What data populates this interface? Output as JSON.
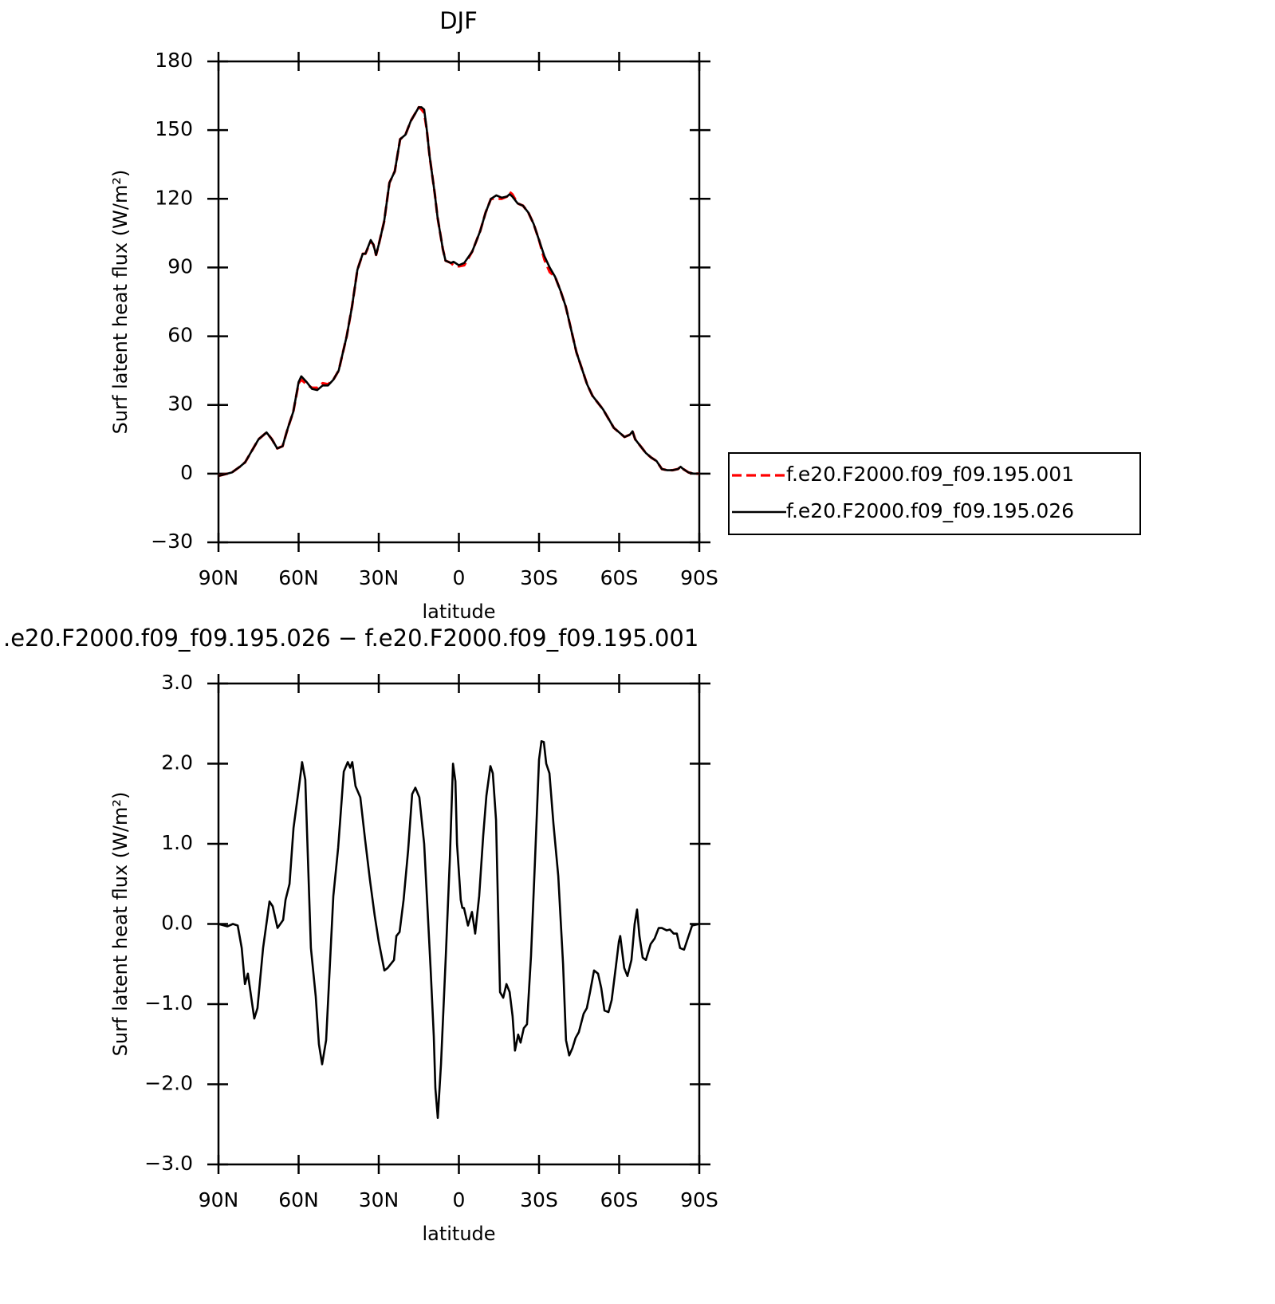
{
  "chart_data": [
    {
      "type": "line",
      "title": "DJF",
      "xlabel": "latitude",
      "ylabel": "Surf latent heat flux (W/m²)",
      "x": [
        90,
        85,
        82,
        80,
        77,
        75,
        72,
        70,
        68,
        66,
        64,
        62,
        60,
        59,
        57,
        55,
        53,
        51,
        49,
        47,
        45,
        42,
        40,
        38,
        36,
        35,
        33,
        32,
        31,
        30,
        28,
        26,
        24,
        22,
        20,
        18,
        16,
        15,
        14,
        13,
        12,
        11,
        9,
        8,
        6,
        5,
        3,
        2,
        0,
        -2,
        -5,
        -8,
        -10,
        -12,
        -14,
        -16,
        -18,
        -19,
        -20,
        -22,
        -24,
        -26,
        -28,
        -30,
        -32,
        -34,
        -36,
        -38,
        -40,
        -42,
        -44,
        -46,
        -48,
        -50,
        -52,
        -54,
        -56,
        -58,
        -60,
        -62,
        -64,
        -65,
        -66,
        -68,
        -70,
        -72,
        -74,
        -76,
        -78,
        -80,
        -82,
        -83,
        -84,
        -86,
        -88,
        -90
      ],
      "series": [
        {
          "name": "f.e20.F2000.f09_f09.195.001",
          "color": "#ff0000",
          "dashed": true,
          "values": [
            -1,
            0.5,
            3,
            5,
            11,
            15,
            18,
            15,
            11,
            12,
            20,
            27,
            39.5,
            41,
            39,
            37.5,
            37.5,
            39.5,
            39,
            41,
            45,
            60,
            73,
            89,
            96,
            96,
            101.5,
            100,
            95.5,
            100,
            110,
            127,
            132,
            146,
            148,
            154,
            158,
            160,
            159,
            157.5,
            150,
            139,
            122,
            112,
            98,
            93,
            92,
            91,
            90.5,
            91,
            97,
            106,
            114,
            120,
            120,
            120,
            121,
            123,
            122,
            118,
            117,
            114,
            109,
            102,
            93.5,
            88,
            86,
            80,
            73,
            63,
            53,
            46,
            39,
            34,
            31,
            28,
            24,
            20,
            18,
            16,
            17,
            18.5,
            15,
            12,
            9,
            7,
            5.5,
            2,
            1.5,
            1.5,
            2,
            3,
            2,
            0.5,
            0,
            0
          ]
        },
        {
          "name": "f.e20.F2000.f09_f09.195.026",
          "color": "#000000",
          "dashed": false,
          "values": [
            -1,
            0.5,
            3,
            5,
            11,
            15,
            18,
            15,
            11,
            12,
            20,
            27,
            40,
            42.5,
            40,
            37,
            36.5,
            38.5,
            38.5,
            41,
            45,
            60,
            73,
            89,
            96,
            96,
            102,
            100,
            95.5,
            100,
            110,
            127,
            132,
            146,
            148,
            154,
            158,
            160,
            160,
            159,
            150,
            139,
            122,
            112,
            98,
            93,
            92,
            92.5,
            91,
            92,
            97,
            106,
            114,
            120,
            121.5,
            120.5,
            121,
            122,
            121,
            118,
            117,
            114,
            109,
            102,
            95,
            90,
            86,
            80,
            73,
            63,
            53,
            46,
            39,
            34,
            31,
            28,
            24,
            20,
            18,
            16,
            17,
            18.5,
            15,
            12,
            9,
            7,
            5.5,
            2,
            1.5,
            1.5,
            2,
            3,
            2,
            0.5,
            0,
            0
          ]
        }
      ],
      "xlim": [
        90,
        -90
      ],
      "xticks": [
        {
          "value": 90,
          "label": "90N"
        },
        {
          "value": 60,
          "label": "60N"
        },
        {
          "value": 30,
          "label": "30N"
        },
        0,
        {
          "value": -30,
          "label": "30S"
        },
        {
          "value": -60,
          "label": "60S"
        },
        {
          "value": -90,
          "label": "90S"
        }
      ],
      "ylim": [
        -30,
        180
      ],
      "yticks": [
        {
          "value": -30,
          "label": "−30"
        },
        0,
        30,
        60,
        90,
        120,
        150,
        180
      ],
      "legend": "right"
    },
    {
      "type": "line",
      "title": ".e20.F2000.f09_f09.195.026 − f.e20.F2000.f09_f09.195.001",
      "xlabel": "latitude",
      "ylabel": "Surf latent heat flux (W/m²)",
      "x": [
        90,
        86.7,
        84.6,
        82.8,
        81.3,
        80.1,
        79.0,
        76.6,
        75.4,
        73.3,
        70.9,
        69.7,
        67.9,
        65.8,
        64.9,
        63.4,
        61.9,
        59.9,
        58.7,
        57.5,
        55.4,
        53.6,
        52.4,
        51.2,
        49.7,
        47.0,
        45.2,
        43.1,
        41.6,
        40.7,
        39.9,
        38.7,
        36.9,
        35.1,
        33.3,
        31.5,
        30.0,
        27.9,
        26.7,
        24.3,
        23.4,
        22.2,
        20.7,
        19.0,
        17.5,
        16.3,
        14.8,
        13.0,
        10.6,
        9.4,
        8.8,
        7.9,
        6.7,
        4.9,
        3.4,
        2.2,
        1.3,
        0.7,
        -0.7,
        -1.3,
        -1.9,
        -3.4,
        -4.9,
        -6.1,
        -7.6,
        -9.1,
        -10.3,
        -11.8,
        -12.7,
        -13.9,
        -15.4,
        -16.6,
        -17.8,
        -19.0,
        -20.1,
        -21.0,
        -22.2,
        -23.1,
        -24.3,
        -25.5,
        -27.0,
        -28.5,
        -30.0,
        -30.9,
        -31.8,
        -32.7,
        -33.9,
        -35.4,
        -37.2,
        -39.0,
        -40.1,
        -41.3,
        -42.5,
        -43.7,
        -44.9,
        -46.7,
        -47.9,
        -49.1,
        -50.6,
        -52.1,
        -53.3,
        -54.5,
        -56.0,
        -57.2,
        -58.7,
        -59.9,
        -60.4,
        -61.9,
        -63.1,
        -64.6,
        -65.8,
        -66.7,
        -67.6,
        -68.8,
        -70.0,
        -71.8,
        -73.3,
        -74.8,
        -76.0,
        -77.8,
        -79.0,
        -80.4,
        -81.6,
        -82.8,
        -84.3,
        -85.5,
        -87.3,
        -90
      ],
      "values": [
        0.0,
        -0.03,
        0.0,
        -0.02,
        -0.3,
        -0.75,
        -0.62,
        -1.18,
        -1.05,
        -0.3,
        0.28,
        0.22,
        -0.05,
        0.05,
        0.3,
        0.5,
        1.2,
        1.7,
        2.02,
        1.8,
        -0.3,
        -0.9,
        -1.5,
        -1.75,
        -1.45,
        0.35,
        0.95,
        1.9,
        2.02,
        1.95,
        2.02,
        1.72,
        1.58,
        1.05,
        0.55,
        0.1,
        -0.22,
        -0.58,
        -0.55,
        -0.45,
        -0.15,
        -0.1,
        0.3,
        0.92,
        1.62,
        1.7,
        1.58,
        1.0,
        -0.55,
        -1.4,
        -2.05,
        -2.42,
        -1.75,
        -0.4,
        0.8,
        2.0,
        1.78,
        1.0,
        0.3,
        0.2,
        0.2,
        -0.02,
        0.15,
        -0.12,
        0.35,
        1.1,
        1.6,
        1.97,
        1.88,
        1.3,
        -0.85,
        -0.92,
        -0.75,
        -0.85,
        -1.15,
        -1.58,
        -1.38,
        -1.48,
        -1.3,
        -1.25,
        -0.4,
        0.8,
        2.05,
        2.28,
        2.27,
        2.0,
        1.88,
        1.25,
        0.6,
        -0.5,
        -1.45,
        -1.64,
        -1.55,
        -1.42,
        -1.35,
        -1.12,
        -1.05,
        -0.85,
        -0.58,
        -0.62,
        -0.8,
        -1.08,
        -1.1,
        -0.95,
        -0.55,
        -0.22,
        -0.15,
        -0.55,
        -0.65,
        -0.45,
        0.0,
        0.18,
        -0.15,
        -0.42,
        -0.45,
        -0.25,
        -0.18,
        -0.05,
        -0.05,
        -0.08,
        -0.07,
        -0.12,
        -0.12,
        -0.3,
        -0.32,
        -0.2,
        -0.02,
        0.0
      ],
      "color": "#000000",
      "xlim": [
        90,
        -90
      ],
      "xticks": [
        {
          "value": 90,
          "label": "90N"
        },
        {
          "value": 60,
          "label": "60N"
        },
        {
          "value": 30,
          "label": "30N"
        },
        0,
        {
          "value": -30,
          "label": "30S"
        },
        {
          "value": -60,
          "label": "60S"
        },
        {
          "value": -90,
          "label": "90S"
        }
      ],
      "ylim": [
        -3,
        3
      ],
      "yticks": [
        {
          "value": -3,
          "label": "−3.0"
        },
        {
          "value": -2,
          "label": "−2.0"
        },
        {
          "value": -1,
          "label": "−1.0"
        },
        {
          "value": 0,
          "label": "0.0"
        },
        {
          "value": 1,
          "label": "1.0"
        },
        {
          "value": 2,
          "label": "2.0"
        },
        {
          "value": 3,
          "label": "3.0"
        }
      ]
    }
  ]
}
